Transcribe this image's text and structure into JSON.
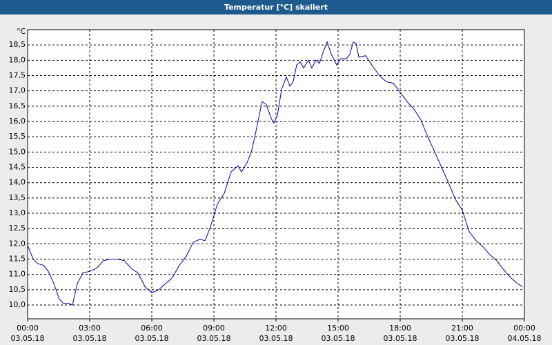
{
  "chart_data": {
    "type": "line",
    "title": "Temperatur [°C] skaliert",
    "y_label": "°C",
    "x": [
      0,
      0.27,
      0.5,
      0.77,
      1.0,
      1.27,
      1.53,
      1.73,
      2.0,
      2.17,
      2.4,
      2.67,
      3.0,
      3.33,
      3.67,
      4.0,
      4.33,
      4.67,
      5.0,
      5.33,
      5.67,
      6.0,
      6.33,
      6.67,
      7.0,
      7.33,
      7.67,
      8.0,
      8.33,
      8.57,
      8.83,
      9.17,
      9.5,
      9.83,
      10.17,
      10.33,
      10.6,
      10.83,
      11.07,
      11.33,
      11.53,
      11.77,
      11.9,
      12.07,
      12.27,
      12.5,
      12.67,
      12.83,
      13.0,
      13.17,
      13.33,
      13.57,
      13.73,
      13.93,
      14.1,
      14.27,
      14.47,
      14.67,
      14.93,
      15.13,
      15.4,
      15.57,
      15.73,
      15.87,
      16.0,
      16.33,
      16.67,
      17.0,
      17.33,
      17.67,
      18.0,
      18.33,
      18.67,
      19.0,
      19.33,
      19.67,
      20.0,
      20.33,
      20.67,
      21.0,
      21.33,
      21.67,
      22.0,
      22.33,
      22.67,
      23.0,
      23.33,
      23.67,
      23.9
    ],
    "series": [
      {
        "name": "Temperatur",
        "color": "#0000a0",
        "values": [
          11.95,
          11.5,
          11.35,
          11.3,
          11.1,
          10.7,
          10.2,
          10.05,
          10.05,
          10.0,
          10.7,
          11.05,
          11.1,
          11.2,
          11.45,
          11.5,
          11.5,
          11.45,
          11.2,
          11.05,
          10.6,
          10.4,
          10.5,
          10.7,
          10.9,
          11.3,
          11.6,
          12.05,
          12.15,
          12.1,
          12.55,
          13.3,
          13.65,
          14.35,
          14.55,
          14.35,
          14.65,
          15.05,
          15.8,
          16.65,
          16.55,
          16.1,
          15.95,
          16.2,
          17.05,
          17.45,
          17.15,
          17.3,
          17.85,
          17.95,
          17.75,
          18.0,
          17.75,
          18.0,
          17.9,
          18.25,
          18.6,
          18.2,
          17.85,
          18.05,
          18.05,
          18.2,
          18.6,
          18.55,
          18.1,
          18.15,
          17.8,
          17.5,
          17.3,
          17.25,
          16.95,
          16.65,
          16.4,
          16.05,
          15.5,
          15.0,
          14.5,
          14.0,
          13.45,
          13.1,
          12.4,
          12.1,
          11.9,
          11.65,
          11.45,
          11.15,
          10.9,
          10.7,
          10.6
        ]
      }
    ],
    "xlim": [
      0,
      24
    ],
    "xticks": [
      {
        "value": 0,
        "label": "00:00",
        "date": "03.05.18"
      },
      {
        "value": 3,
        "label": "03:00",
        "date": "03.05.18"
      },
      {
        "value": 6,
        "label": "06:00",
        "date": "03.05.18"
      },
      {
        "value": 9,
        "label": "09:00",
        "date": "03.05.18"
      },
      {
        "value": 12,
        "label": "12:00",
        "date": "03.05.18"
      },
      {
        "value": 15,
        "label": "15:00",
        "date": "03.05.18"
      },
      {
        "value": 18,
        "label": "18:00",
        "date": "03.05.18"
      },
      {
        "value": 21,
        "label": "21:00",
        "date": "03.05.18"
      },
      {
        "value": 24,
        "label": "00:00",
        "date": "04.05.18"
      }
    ],
    "ylim": [
      9.55,
      19.0
    ],
    "yticks": [
      {
        "value": 10,
        "label": "10,0"
      },
      {
        "value": 10.5,
        "label": "10,5"
      },
      {
        "value": 11,
        "label": "11,0"
      },
      {
        "value": 11.5,
        "label": "11,5"
      },
      {
        "value": 12,
        "label": "12,0"
      },
      {
        "value": 12.5,
        "label": "12,5"
      },
      {
        "value": 13,
        "label": "13,0"
      },
      {
        "value": 13.5,
        "label": "13,5"
      },
      {
        "value": 14,
        "label": "14,0"
      },
      {
        "value": 14.5,
        "label": "14,5"
      },
      {
        "value": 15,
        "label": "15,0"
      },
      {
        "value": 15.5,
        "label": "15,5"
      },
      {
        "value": 16,
        "label": "16,0"
      },
      {
        "value": 16.5,
        "label": "16,5"
      },
      {
        "value": 17,
        "label": "17,0"
      },
      {
        "value": 17.5,
        "label": "17,5"
      },
      {
        "value": 18,
        "label": "18,0"
      },
      {
        "value": 18.5,
        "label": "18,5"
      }
    ],
    "grid": true
  }
}
